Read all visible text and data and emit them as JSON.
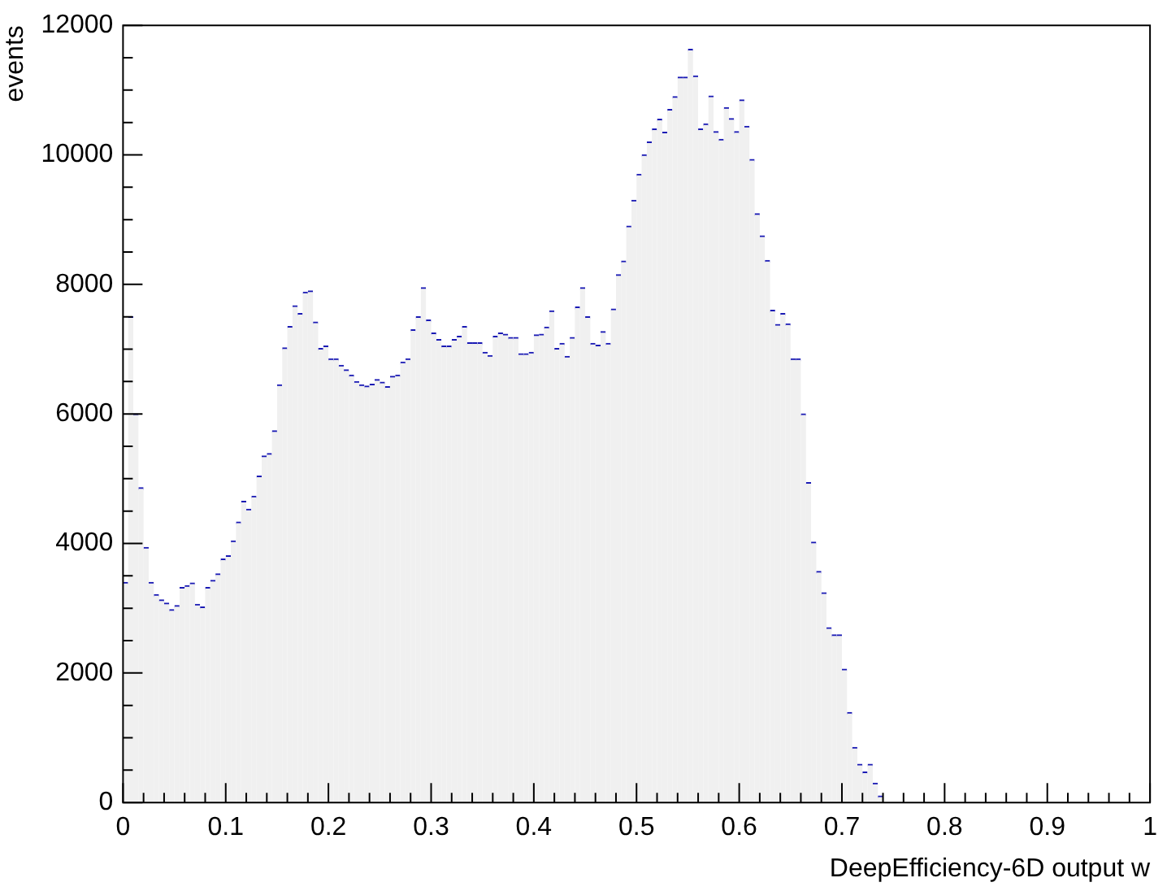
{
  "chart_data": {
    "type": "histogram",
    "xlabel": "DeepEfficiency-6D output w",
    "ylabel": "events",
    "color": "#f0f0f0",
    "bins": [
      0,
      0.005,
      0.01,
      0.015,
      0.02,
      0.025,
      0.03,
      0.035,
      0.04,
      0.045,
      0.05,
      0.055,
      0.06,
      0.065,
      0.07,
      0.075,
      0.08,
      0.085,
      0.09,
      0.095,
      0.1,
      0.105,
      0.11,
      0.115,
      0.12,
      0.125,
      0.13,
      0.135,
      0.14,
      0.145,
      0.15,
      0.155,
      0.16,
      0.165,
      0.17,
      0.175,
      0.18,
      0.185,
      0.19,
      0.195,
      0.2,
      0.205,
      0.21,
      0.215,
      0.22,
      0.225,
      0.23,
      0.235,
      0.24,
      0.245,
      0.25,
      0.255,
      0.26,
      0.265,
      0.27,
      0.275,
      0.28,
      0.285,
      0.29,
      0.295,
      0.3,
      0.305,
      0.31,
      0.315,
      0.32,
      0.325,
      0.33,
      0.335,
      0.34,
      0.345,
      0.35,
      0.355,
      0.36,
      0.365,
      0.37,
      0.375,
      0.38,
      0.385,
      0.39,
      0.395,
      0.4,
      0.405,
      0.41,
      0.415,
      0.42,
      0.425,
      0.43,
      0.435,
      0.44,
      0.445,
      0.45,
      0.455,
      0.46,
      0.465,
      0.47,
      0.475,
      0.48,
      0.485,
      0.49,
      0.495,
      0.5,
      0.505,
      0.51,
      0.515,
      0.52,
      0.525,
      0.53,
      0.535,
      0.54,
      0.545,
      0.55,
      0.555,
      0.56,
      0.565,
      0.57,
      0.575,
      0.58,
      0.585,
      0.59,
      0.595,
      0.6,
      0.605,
      0.61,
      0.615,
      0.62,
      0.625,
      0.63,
      0.635,
      0.64,
      0.645,
      0.65,
      0.655,
      0.66,
      0.665,
      0.67,
      0.675,
      0.68,
      0.685,
      0.69,
      0.695,
      0.7,
      0.705,
      0.71,
      0.715,
      0.72,
      0.725,
      0.73,
      0.735,
      0.74
    ],
    "values": [
      3400,
      7500,
      6000,
      4860,
      3940,
      3400,
      3210,
      3130,
      3080,
      2980,
      3040,
      3320,
      3350,
      3390,
      3060,
      3020,
      3320,
      3430,
      3530,
      3760,
      3810,
      4040,
      4330,
      4650,
      4530,
      4730,
      5040,
      5350,
      5390,
      5740,
      6450,
      7020,
      7350,
      7670,
      7550,
      7880,
      7900,
      7420,
      7010,
      7050,
      6850,
      6850,
      6750,
      6680,
      6600,
      6500,
      6450,
      6430,
      6460,
      6530,
      6490,
      6420,
      6580,
      6600,
      6800,
      6850,
      7300,
      7500,
      7950,
      7450,
      7250,
      7150,
      7050,
      7050,
      7150,
      7200,
      7350,
      7100,
      7100,
      7100,
      6950,
      6900,
      7200,
      7250,
      7230,
      7180,
      7180,
      6930,
      6930,
      6950,
      7220,
      7230,
      7340,
      7590,
      7010,
      7090,
      6890,
      7180,
      7650,
      7950,
      7500,
      7090,
      7060,
      7270,
      7090,
      7620,
      8150,
      8360,
      8900,
      9300,
      9700,
      10000,
      10200,
      10400,
      10550,
      10350,
      10700,
      10900,
      11200,
      11200,
      11630,
      11220,
      10400,
      10480,
      10910,
      10360,
      10240,
      10730,
      10560,
      10360,
      10850,
      10440,
      9930,
      9090,
      8750,
      8370,
      7600,
      7380,
      7550,
      7390,
      6850,
      6850,
      6000,
      4940,
      4020,
      3570,
      3240,
      2700,
      2590,
      2590,
      2060,
      1390,
      850,
      590,
      470,
      590,
      300,
      100
    ],
    "xlim": [
      0,
      1
    ],
    "xticks": [
      {
        "value": 0,
        "label": "0"
      },
      {
        "value": 0.02,
        "label": null
      },
      {
        "value": 0.04,
        "label": null
      },
      {
        "value": 0.06,
        "label": null
      },
      {
        "value": 0.08,
        "label": null
      },
      {
        "value": 0.1,
        "label": "0.1"
      },
      {
        "value": 0.12,
        "label": null
      },
      {
        "value": 0.14,
        "label": null
      },
      {
        "value": 0.16,
        "label": null
      },
      {
        "value": 0.18,
        "label": null
      },
      {
        "value": 0.2,
        "label": "0.2"
      },
      {
        "value": 0.22,
        "label": null
      },
      {
        "value": 0.24,
        "label": null
      },
      {
        "value": 0.26,
        "label": null
      },
      {
        "value": 0.28,
        "label": null
      },
      {
        "value": 0.3,
        "label": "0.3"
      },
      {
        "value": 0.32,
        "label": null
      },
      {
        "value": 0.34,
        "label": null
      },
      {
        "value": 0.36,
        "label": null
      },
      {
        "value": 0.38,
        "label": null
      },
      {
        "value": 0.4,
        "label": "0.4"
      },
      {
        "value": 0.42,
        "label": null
      },
      {
        "value": 0.44,
        "label": null
      },
      {
        "value": 0.46,
        "label": null
      },
      {
        "value": 0.48,
        "label": null
      },
      {
        "value": 0.5,
        "label": "0.5"
      },
      {
        "value": 0.52,
        "label": null
      },
      {
        "value": 0.54,
        "label": null
      },
      {
        "value": 0.56,
        "label": null
      },
      {
        "value": 0.58,
        "label": null
      },
      {
        "value": 0.6,
        "label": "0.6"
      },
      {
        "value": 0.62,
        "label": null
      },
      {
        "value": 0.64,
        "label": null
      },
      {
        "value": 0.66,
        "label": null
      },
      {
        "value": 0.68,
        "label": null
      },
      {
        "value": 0.7,
        "label": "0.7"
      },
      {
        "value": 0.72,
        "label": null
      },
      {
        "value": 0.74,
        "label": null
      },
      {
        "value": 0.76,
        "label": null
      },
      {
        "value": 0.78,
        "label": null
      },
      {
        "value": 0.8,
        "label": "0.8"
      },
      {
        "value": 0.82,
        "label": null
      },
      {
        "value": 0.84,
        "label": null
      },
      {
        "value": 0.86,
        "label": null
      },
      {
        "value": 0.88,
        "label": null
      },
      {
        "value": 0.9,
        "label": "0.9"
      },
      {
        "value": 0.92,
        "label": null
      },
      {
        "value": 0.94,
        "label": null
      },
      {
        "value": 0.96,
        "label": null
      },
      {
        "value": 0.98,
        "label": null
      },
      {
        "value": 1,
        "label": "1"
      }
    ],
    "ylim": [
      0,
      12000
    ],
    "yticks": [
      0,
      {
        "value": 500,
        "label": null
      },
      {
        "value": 1000,
        "label": null
      },
      {
        "value": 1500,
        "label": null
      },
      2000,
      {
        "value": 2500,
        "label": null
      },
      {
        "value": 3000,
        "label": null
      },
      {
        "value": 3500,
        "label": null
      },
      4000,
      {
        "value": 4500,
        "label": null
      },
      {
        "value": 5000,
        "label": null
      },
      {
        "value": 5500,
        "label": null
      },
      6000,
      {
        "value": 6500,
        "label": null
      },
      {
        "value": 7000,
        "label": null
      },
      {
        "value": 7500,
        "label": null
      },
      8000,
      {
        "value": 8500,
        "label": null
      },
      {
        "value": 9000,
        "label": null
      },
      {
        "value": 9500,
        "label": null
      },
      10000,
      {
        "value": 10500,
        "label": null
      },
      {
        "value": 11000,
        "label": null
      },
      {
        "value": 11500,
        "label": null
      },
      12000
    ],
    "grid": false,
    "legend": false
  }
}
